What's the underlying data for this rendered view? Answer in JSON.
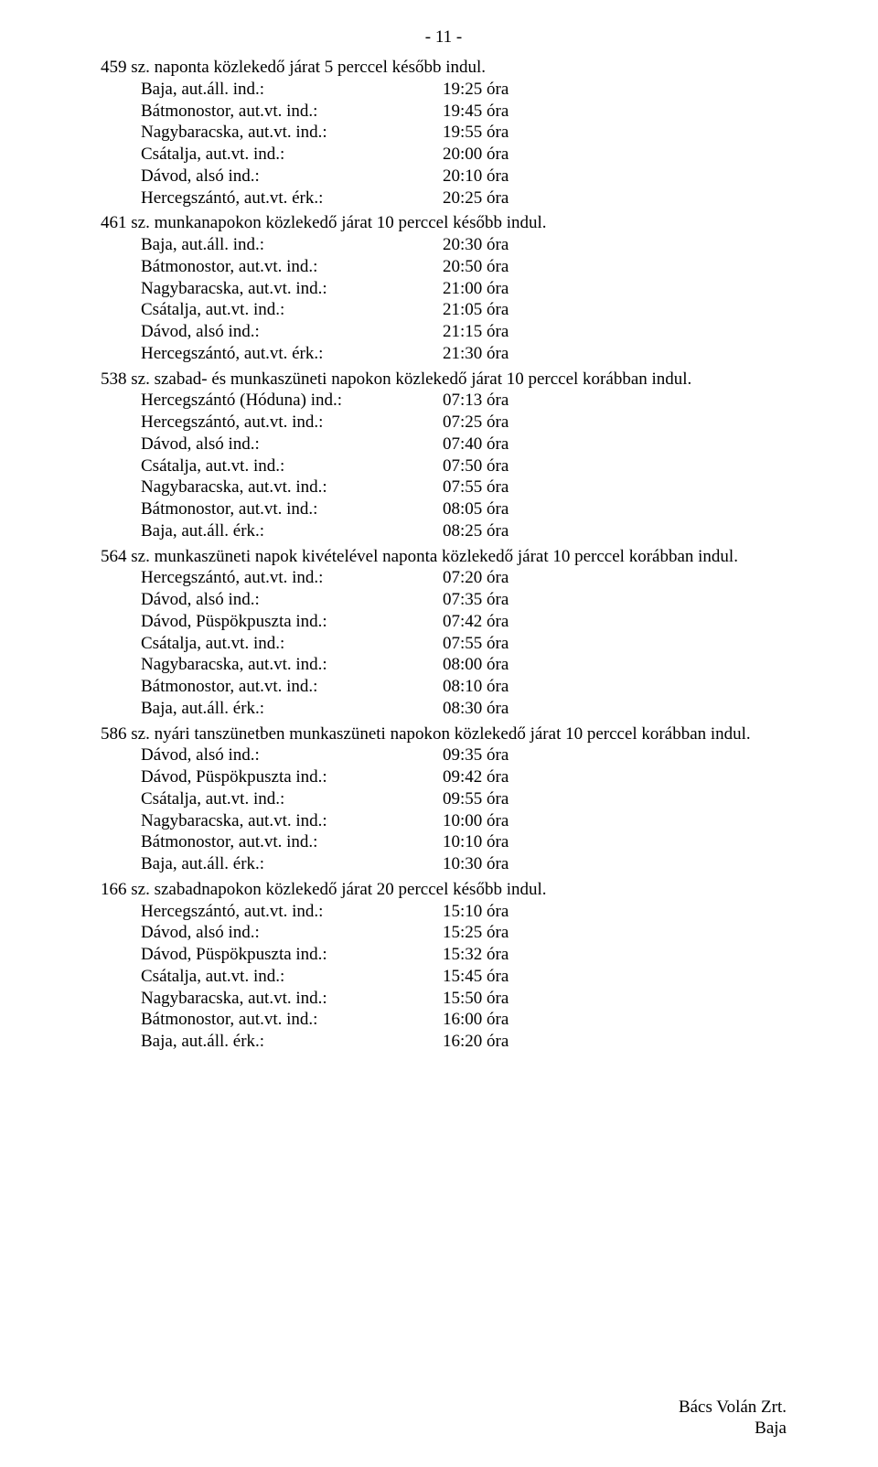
{
  "page_number": "- 11 -",
  "entries": [
    {
      "title": "459 sz. naponta közlekedő járat 5 perccel később indul.",
      "rows": [
        {
          "label": "Baja, aut.áll. ind.:",
          "value": "19:25 óra"
        },
        {
          "label": "Bátmonostor, aut.vt. ind.:",
          "value": "19:45 óra"
        },
        {
          "label": "Nagybaracska, aut.vt. ind.:",
          "value": "19:55 óra"
        },
        {
          "label": "Csátalja, aut.vt. ind.:",
          "value": "20:00 óra"
        },
        {
          "label": "Dávod, alsó ind.:",
          "value": "20:10 óra"
        },
        {
          "label": "Hercegszántó, aut.vt. érk.:",
          "value": "20:25 óra"
        }
      ]
    },
    {
      "title": "461 sz. munkanapokon közlekedő járat 10 perccel később indul.",
      "rows": [
        {
          "label": "Baja, aut.áll. ind.:",
          "value": "20:30 óra"
        },
        {
          "label": "Bátmonostor, aut.vt. ind.:",
          "value": "20:50 óra"
        },
        {
          "label": "Nagybaracska, aut.vt. ind.:",
          "value": "21:00 óra"
        },
        {
          "label": "Csátalja, aut.vt. ind.:",
          "value": "21:05 óra"
        },
        {
          "label": "Dávod, alsó ind.:",
          "value": "21:15 óra"
        },
        {
          "label": "Hercegszántó, aut.vt. érk.:",
          "value": "21:30 óra"
        }
      ]
    },
    {
      "title": "538 sz. szabad- és munkaszüneti napokon közlekedő járat 10 perccel korábban indul.",
      "rows": [
        {
          "label": "Hercegszántó (Hóduna) ind.:",
          "value": "07:13 óra"
        },
        {
          "label": "Hercegszántó, aut.vt. ind.:",
          "value": "07:25 óra"
        },
        {
          "label": "Dávod, alsó ind.:",
          "value": "07:40 óra"
        },
        {
          "label": "Csátalja, aut.vt. ind.:",
          "value": "07:50 óra"
        },
        {
          "label": "Nagybaracska, aut.vt. ind.:",
          "value": "07:55 óra"
        },
        {
          "label": "Bátmonostor, aut.vt. ind.:",
          "value": "08:05 óra"
        },
        {
          "label": "Baja, aut.áll. érk.:",
          "value": "08:25 óra"
        }
      ]
    },
    {
      "title": "564 sz. munkaszüneti napok kivételével naponta közlekedő járat 10 perccel korábban indul.",
      "rows": [
        {
          "label": "Hercegszántó, aut.vt. ind.:",
          "value": "07:20 óra"
        },
        {
          "label": "Dávod, alsó ind.:",
          "value": "07:35 óra"
        },
        {
          "label": "Dávod, Püspökpuszta ind.:",
          "value": "07:42 óra"
        },
        {
          "label": "Csátalja, aut.vt. ind.:",
          "value": "07:55 óra"
        },
        {
          "label": "Nagybaracska, aut.vt. ind.:",
          "value": "08:00 óra"
        },
        {
          "label": "Bátmonostor, aut.vt. ind.:",
          "value": "08:10 óra"
        },
        {
          "label": "Baja, aut.áll. érk.:",
          "value": "08:30 óra"
        }
      ]
    },
    {
      "title": "586 sz. nyári tanszünetben munkaszüneti napokon közlekedő járat 10 perccel korábban indul.",
      "rows": [
        {
          "label": "Dávod, alsó ind.:",
          "value": "09:35 óra"
        },
        {
          "label": "Dávod, Püspökpuszta ind.:",
          "value": "09:42 óra"
        },
        {
          "label": "Csátalja, aut.vt. ind.:",
          "value": "09:55 óra"
        },
        {
          "label": "Nagybaracska, aut.vt. ind.:",
          "value": "10:00 óra"
        },
        {
          "label": "Bátmonostor, aut.vt. ind.:",
          "value": "10:10 óra"
        },
        {
          "label": "Baja, aut.áll. érk.:",
          "value": "10:30 óra"
        }
      ]
    },
    {
      "title": "166 sz. szabadnapokon közlekedő járat 20 perccel később indul.",
      "rows": [
        {
          "label": "Hercegszántó, aut.vt. ind.:",
          "value": "15:10 óra"
        },
        {
          "label": "Dávod, alsó ind.:",
          "value": "15:25 óra"
        },
        {
          "label": "Dávod, Püspökpuszta ind.:",
          "value": "15:32 óra"
        },
        {
          "label": "Csátalja, aut.vt. ind.:",
          "value": "15:45 óra"
        },
        {
          "label": "Nagybaracska, aut.vt. ind.:",
          "value": "15:50 óra"
        },
        {
          "label": "Bátmonostor, aut.vt. ind.:",
          "value": "16:00 óra"
        },
        {
          "label": "Baja, aut.áll. érk.:",
          "value": "16:20 óra"
        }
      ]
    }
  ],
  "footer": {
    "line1": "Bács Volán Zrt.",
    "line2": "Baja"
  }
}
